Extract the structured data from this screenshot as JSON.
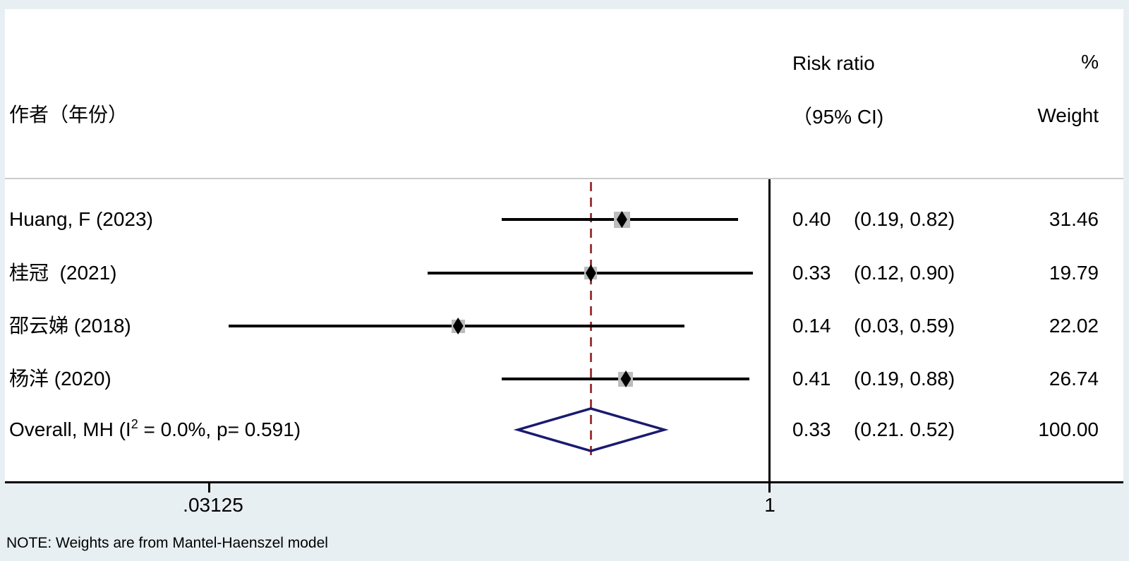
{
  "header": {
    "author_col": "作者（年份）",
    "effect_col_line1": "Risk ratio",
    "effect_col_line2": "（95% CI)",
    "weight_col_line1": "%",
    "weight_col_line2": "Weight"
  },
  "note": "NOTE: Weights are from Mantel-Haenszel model",
  "overall_label": {
    "prefix": "Overall, MH (I",
    "sup": "2",
    "suffix": " = 0.0%, p= 0.591)"
  },
  "colors": {
    "background": "#e8eff2",
    "separator": "#cbcbcb",
    "dashed_line": "#9e3939",
    "diamond": "#1a1a70",
    "weight_square": "#bcbcbc",
    "line": "#000000"
  },
  "chart_data": {
    "type": "forest",
    "effect_measure": "Risk ratio",
    "scale": "log2",
    "axis": {
      "ticks": [
        {
          "label": ".03125",
          "value": 0.03125
        },
        {
          "label": "1",
          "value": 1
        }
      ]
    },
    "null_value": 1,
    "overall_line_value": 0.33,
    "studies": [
      {
        "label": "Huang, F (2023)",
        "rr_text": "0.40",
        "ci_text": "(0.19, 0.82)",
        "weight_text": "31.46",
        "rr": 0.4,
        "lo": 0.19,
        "hi": 0.82,
        "weight": 31.46
      },
      {
        "label": "桂冠  (2021)",
        "rr_text": "0.33",
        "ci_text": "(0.12, 0.90)",
        "weight_text": "19.79",
        "rr": 0.33,
        "lo": 0.12,
        "hi": 0.9,
        "weight": 19.79
      },
      {
        "label": "邵云娣 (2018)",
        "rr_text": "0.14",
        "ci_text": "(0.03, 0.59)",
        "weight_text": "22.02",
        "rr": 0.14,
        "lo": 0.03,
        "hi": 0.59,
        "weight": 22.02,
        "plot_rr": 0.145,
        "plot_lo": 0.035
      },
      {
        "label": "杨洋 (2020)",
        "rr_text": "0.41",
        "ci_text": "(0.19, 0.88)",
        "weight_text": "26.74",
        "rr": 0.41,
        "lo": 0.19,
        "hi": 0.88,
        "weight": 26.74
      }
    ],
    "overall": {
      "rr_text": "0.33",
      "ci_text": "(0.21. 0.52)",
      "weight_text": "100.00",
      "rr": 0.33,
      "lo": 0.21,
      "hi": 0.52,
      "heterogeneity_i2": "0.0%",
      "heterogeneity_p": "0.591"
    }
  }
}
